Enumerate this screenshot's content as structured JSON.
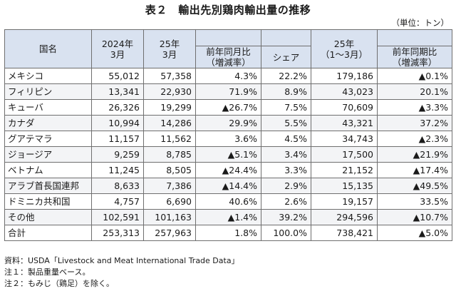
{
  "title": "表２　輸出先別鶏肉輸出量の推移",
  "unit": "（単位：トン）",
  "header": {
    "country": "国名",
    "col_2024_mar": [
      "2024年",
      "3月"
    ],
    "col_25_mar": [
      "25年",
      "3月"
    ],
    "col_yoy": [
      "前年同月比",
      "（増減率）"
    ],
    "col_share": "シェア",
    "col_25_q1": [
      "25年",
      "（1～3月）"
    ],
    "col_period_yoy": [
      "前年同期比",
      "（増減率）"
    ]
  },
  "rows": [
    {
      "country": "メキシコ",
      "v2024_03": "55,012",
      "v2025_03": "57,358",
      "yoy": "4.3%",
      "share": "22.2%",
      "q1": "179,186",
      "period_yoy": "▲0.1%"
    },
    {
      "country": "フィリピン",
      "v2024_03": "13,341",
      "v2025_03": "22,930",
      "yoy": "71.9%",
      "share": "8.9%",
      "q1": "43,023",
      "period_yoy": "20.1%"
    },
    {
      "country": "キューバ",
      "v2024_03": "26,326",
      "v2025_03": "19,299",
      "yoy": "▲26.7%",
      "share": "7.5%",
      "q1": "70,609",
      "period_yoy": "▲3.3%"
    },
    {
      "country": "カナダ",
      "v2024_03": "10,994",
      "v2025_03": "14,286",
      "yoy": "29.9%",
      "share": "5.5%",
      "q1": "43,321",
      "period_yoy": "37.2%"
    },
    {
      "country": "グアテマラ",
      "v2024_03": "11,157",
      "v2025_03": "11,562",
      "yoy": "3.6%",
      "share": "4.5%",
      "q1": "34,743",
      "period_yoy": "▲2.3%"
    },
    {
      "country": "ジョージア",
      "v2024_03": "9,259",
      "v2025_03": "8,785",
      "yoy": "▲5.1%",
      "share": "3.4%",
      "q1": "17,500",
      "period_yoy": "▲21.9%"
    },
    {
      "country": "ベトナム",
      "v2024_03": "11,245",
      "v2025_03": "8,505",
      "yoy": "▲24.4%",
      "share": "3.3%",
      "q1": "21,152",
      "period_yoy": "▲17.4%"
    },
    {
      "country": "アラブ首長国連邦",
      "v2024_03": "8,633",
      "v2025_03": "7,386",
      "yoy": "▲14.4%",
      "share": "2.9%",
      "q1": "15,135",
      "period_yoy": "▲49.5%"
    },
    {
      "country": "ドミニカ共和国",
      "v2024_03": "4,757",
      "v2025_03": "6,690",
      "yoy": "40.6%",
      "share": "2.6%",
      "q1": "19,157",
      "period_yoy": "33.5%"
    },
    {
      "country": "その他",
      "v2024_03": "102,591",
      "v2025_03": "101,163",
      "yoy": "▲1.4%",
      "share": "39.2%",
      "q1": "294,596",
      "period_yoy": "▲10.7%"
    }
  ],
  "total": {
    "country": "合計",
    "v2024_03": "253,313",
    "v2025_03": "257,963",
    "yoy": "1.8%",
    "share": "100.0%",
    "q1": "738,421",
    "period_yoy": "▲5.0%"
  },
  "notes": [
    "資料：USDA「Livestock and Meat International Trade Data」",
    "注１：製品重量ベース。",
    "注２：もみじ（鶏足）を除く。"
  ]
}
